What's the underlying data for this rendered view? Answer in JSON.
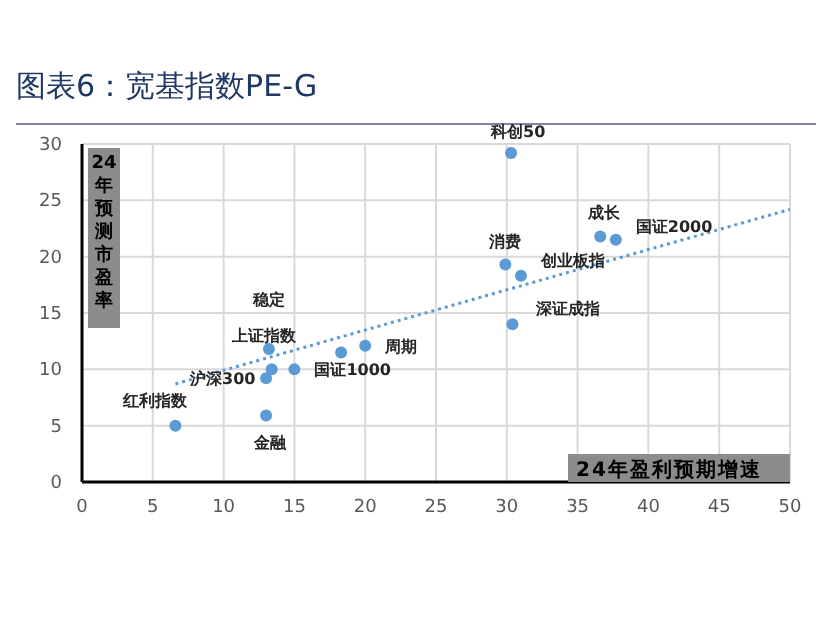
{
  "chart_data": {
    "type": "scatter",
    "title": "图表6：宽基指数PE-G",
    "xlabel": "24年盈利预期增速",
    "ylabel": "24年预测市盈率",
    "xlim": [
      0,
      50
    ],
    "xticks": [
      0,
      5,
      10,
      15,
      20,
      25,
      30,
      35,
      40,
      45,
      50
    ],
    "ylim": [
      0,
      30
    ],
    "yticks": [
      0,
      5,
      10,
      15,
      20,
      25,
      30
    ],
    "grid": true,
    "marker": "circle",
    "series": [
      {
        "type": "scatter",
        "color": "#5b9bd5",
        "x": [
          6.6,
          13.0,
          13.0,
          13.4,
          13.2,
          15.0,
          18.3,
          20.0,
          30.3,
          36.6,
          37.7,
          29.9,
          31.0,
          30.4
        ],
        "values": [
          5.0,
          5.9,
          9.2,
          10.0,
          11.8,
          10.0,
          11.5,
          12.1,
          29.2,
          21.8,
          21.5,
          19.3,
          18.3,
          14.0
        ]
      },
      {
        "type": "line",
        "color": "#5b9bd5",
        "line_style": "dotted",
        "marker": "none",
        "x": [
          6.6,
          50
        ],
        "values": [
          8.7,
          24.2
        ]
      }
    ],
    "annotations": [
      {
        "text": "红利指数",
        "x": 6.6,
        "y": 5.0
      },
      {
        "text": "金融",
        "x": 13.0,
        "y": 5.9
      },
      {
        "text": "沪深300",
        "x": 13.0,
        "y": 9.2
      },
      {
        "text": "上证指数",
        "x": 13.4,
        "y": 10.0
      },
      {
        "text": "稳定",
        "x": 13.2,
        "y": 11.8
      },
      {
        "text": "国证1000",
        "x": 15.0,
        "y": 10.0
      },
      {
        "text": "周期",
        "x": 20.0,
        "y": 12.1
      },
      {
        "text": "科创50",
        "x": 30.3,
        "y": 29.2
      },
      {
        "text": "成长",
        "x": 36.6,
        "y": 21.8
      },
      {
        "text": "国证2000",
        "x": 37.7,
        "y": 21.5
      },
      {
        "text": "消费",
        "x": 29.9,
        "y": 19.3
      },
      {
        "text": "创业板指",
        "x": 31.0,
        "y": 18.3
      },
      {
        "text": "深证成指",
        "x": 30.4,
        "y": 14.0
      }
    ]
  }
}
